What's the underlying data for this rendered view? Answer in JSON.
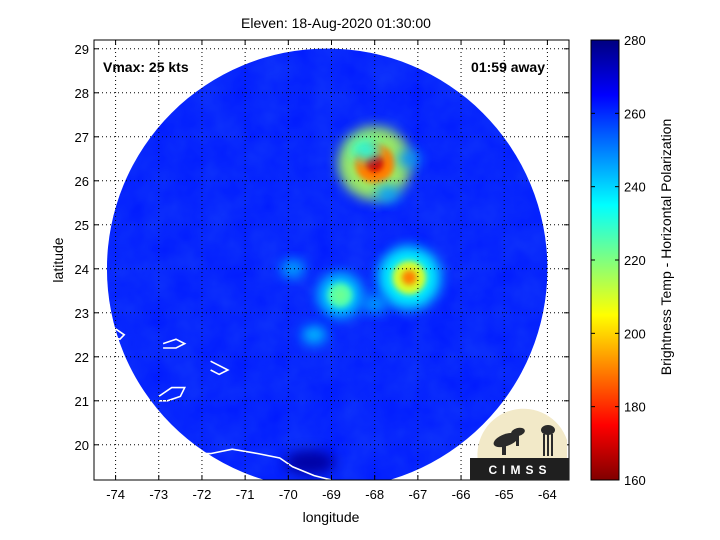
{
  "chart_data": {
    "type": "heatmap",
    "title": "Eleven: 18-Aug-2020 01:30:00",
    "xlabel": "longitude",
    "ylabel": "latitude",
    "xlim": [
      -74.5,
      -63.5
    ],
    "ylim": [
      19.2,
      29.2
    ],
    "x_ticks": [
      "-74",
      "-73",
      "-72",
      "-71",
      "-70",
      "-69",
      "-68",
      "-67",
      "-66",
      "-65",
      "-64"
    ],
    "x_tick_values": [
      -74,
      -73,
      -72,
      -71,
      -70,
      -69,
      -68,
      -67,
      -66,
      -65,
      -64
    ],
    "y_ticks": [
      "20",
      "21",
      "22",
      "23",
      "24",
      "25",
      "26",
      "27",
      "28",
      "29"
    ],
    "y_tick_values": [
      20,
      21,
      22,
      23,
      24,
      25,
      26,
      27,
      28,
      29
    ],
    "grid": true,
    "annotations": {
      "vmax": "Vmax: 25 kts",
      "time_away": "01:59 away"
    },
    "colorbar": {
      "label": "Brightness Temp - Horizontal Polarization",
      "ticks": [
        "160",
        "180",
        "200",
        "220",
        "240",
        "260",
        "280"
      ],
      "tick_values": [
        160,
        180,
        200,
        220,
        240,
        260,
        280
      ],
      "range": [
        160,
        280
      ]
    },
    "swath": {
      "center_lon": -69.1,
      "center_lat": 24.0,
      "radius_deg": 5.1
    },
    "background_value": 262,
    "features": [
      {
        "lon": -68.0,
        "lat": 26.4,
        "value": 170
      },
      {
        "lon": -68.2,
        "lat": 26.7,
        "value": 232
      },
      {
        "lon": -67.2,
        "lat": 23.8,
        "value": 190
      },
      {
        "lon": -68.8,
        "lat": 23.4,
        "value": 222
      },
      {
        "lon": -69.9,
        "lat": 24.0,
        "value": 245
      },
      {
        "lon": -68.0,
        "lat": 23.2,
        "value": 245
      },
      {
        "lon": -69.4,
        "lat": 22.5,
        "value": 242
      },
      {
        "lon": -67.7,
        "lat": 25.7,
        "value": 246
      },
      {
        "lon": -67.2,
        "lat": 26.5,
        "value": 248
      },
      {
        "lon": -69.5,
        "lat": 19.6,
        "value": 276
      }
    ],
    "logo_text": "CIMSS",
    "colors": {
      "swath_blue": "#1a4ff0",
      "land_outline": "#ffffff"
    }
  }
}
